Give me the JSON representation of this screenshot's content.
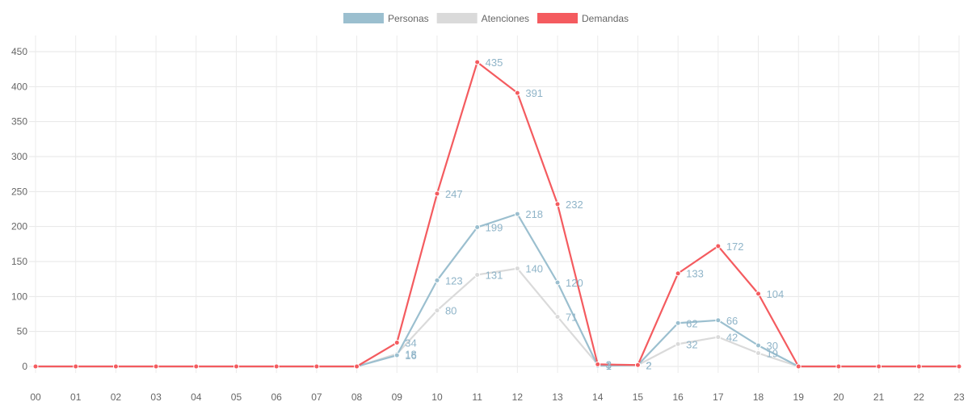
{
  "chart_data": {
    "type": "line",
    "title": "",
    "xlabel": "",
    "ylabel": "",
    "x": [
      "00",
      "01",
      "02",
      "03",
      "04",
      "05",
      "06",
      "07",
      "08",
      "09",
      "10",
      "11",
      "12",
      "13",
      "14",
      "15",
      "16",
      "17",
      "18",
      "19",
      "20",
      "21",
      "22",
      "23"
    ],
    "ylim": [
      0,
      450
    ],
    "yticks": [
      0,
      50,
      100,
      150,
      200,
      250,
      300,
      350,
      400,
      450
    ],
    "grid": true,
    "legend_position": "top",
    "series": [
      {
        "name": "Personas",
        "color": "#9bbfcf",
        "values": [
          0,
          0,
          0,
          0,
          0,
          0,
          0,
          0,
          0,
          16,
          123,
          199,
          218,
          120,
          1,
          2,
          62,
          66,
          30,
          0,
          0,
          0,
          0,
          0
        ]
      },
      {
        "name": "Atenciones",
        "color": "#dadada",
        "values": [
          0,
          0,
          0,
          0,
          0,
          0,
          0,
          0,
          0,
          18,
          80,
          131,
          140,
          71,
          3,
          2,
          32,
          42,
          19,
          0,
          0,
          0,
          0,
          0
        ]
      },
      {
        "name": "Demandas",
        "color": "#f45b5f",
        "values": [
          0,
          0,
          0,
          0,
          0,
          0,
          0,
          0,
          0,
          34,
          247,
          435,
          391,
          232,
          3,
          2,
          133,
          172,
          104,
          0,
          0,
          0,
          0,
          0
        ]
      }
    ],
    "data_label_color": "#8fb4c8"
  }
}
